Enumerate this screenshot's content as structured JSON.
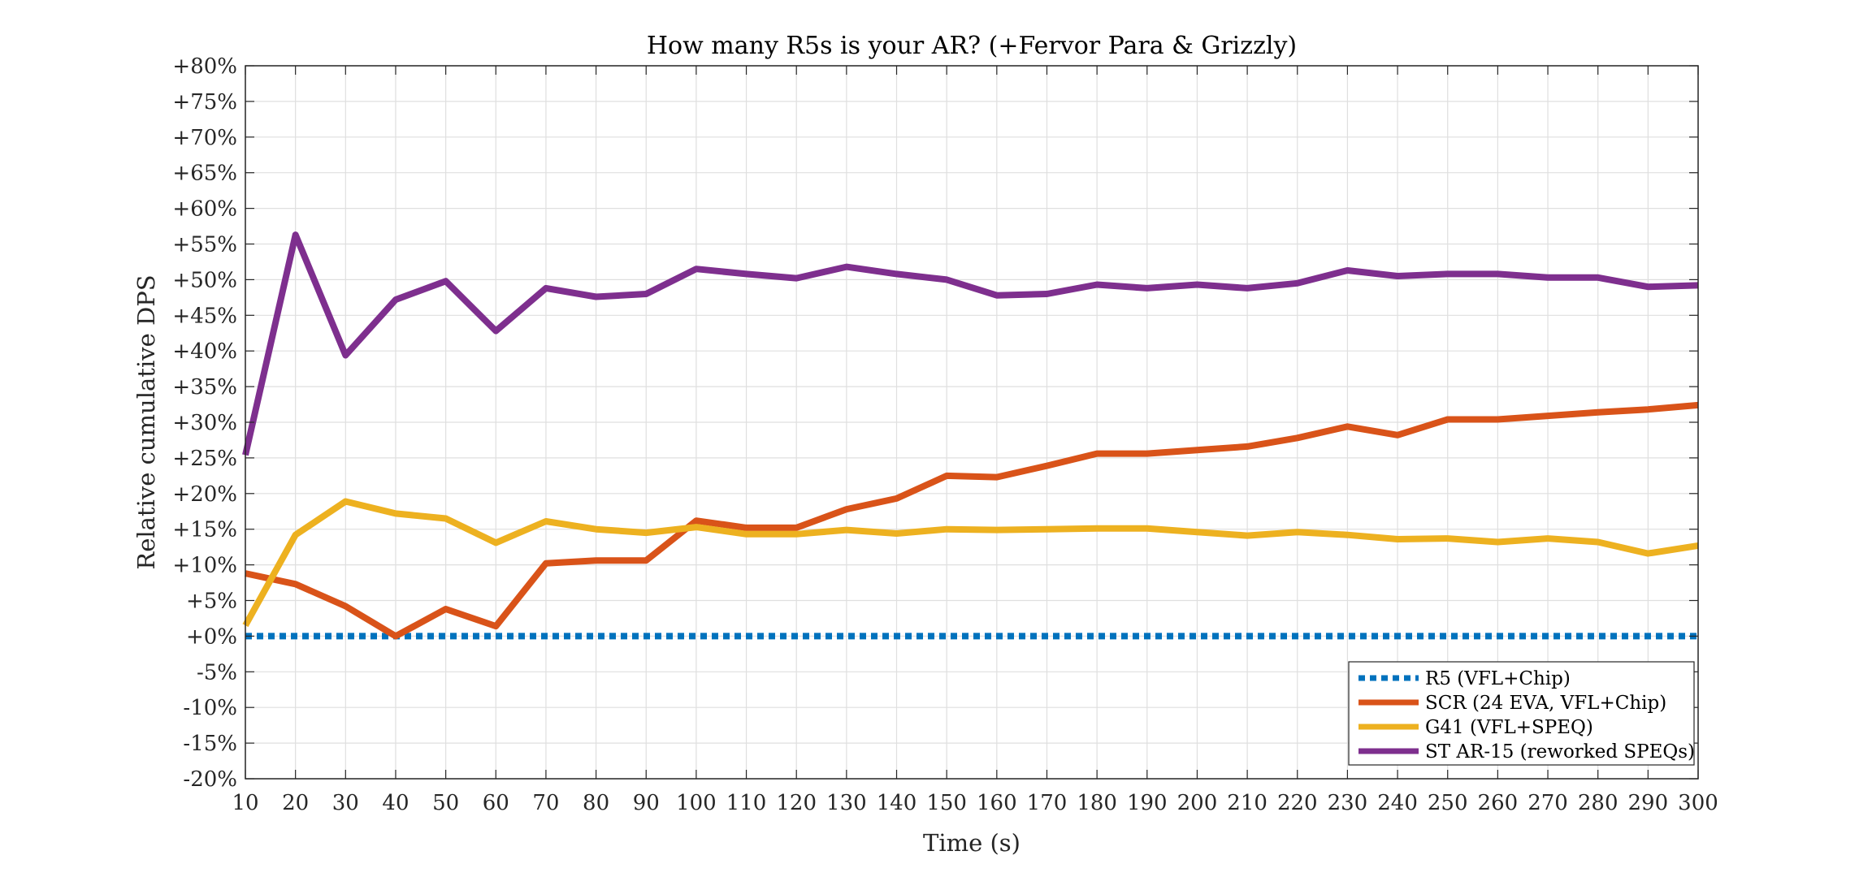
{
  "chart_data": {
    "type": "line",
    "title": "How many R5s is your AR? (+Fervor Para & Grizzly)",
    "xlabel": "Time (s)",
    "ylabel": "Relative cumulative DPS",
    "xlim": [
      10,
      300
    ],
    "ylim": [
      -20,
      80
    ],
    "grid": true,
    "legend_position": "bottom-right",
    "x": [
      10,
      20,
      30,
      40,
      50,
      60,
      70,
      80,
      90,
      100,
      110,
      120,
      130,
      140,
      150,
      160,
      170,
      180,
      190,
      200,
      210,
      220,
      230,
      240,
      250,
      260,
      270,
      280,
      290,
      300
    ],
    "x_tick_labels": [
      "10",
      "20",
      "30",
      "40",
      "50",
      "60",
      "70",
      "80",
      "90",
      "100",
      "110",
      "120",
      "130",
      "140",
      "150",
      "160",
      "170",
      "180",
      "190",
      "200",
      "210",
      "220",
      "230",
      "240",
      "250",
      "260",
      "270",
      "280",
      "290",
      "300"
    ],
    "y_ticks": [
      80,
      75,
      70,
      65,
      60,
      55,
      50,
      45,
      40,
      35,
      30,
      25,
      20,
      15,
      10,
      5,
      0,
      -5,
      -10,
      -15,
      -20
    ],
    "y_tick_labels": [
      "+80%",
      "+75%",
      "+70%",
      "+65%",
      "+60%",
      "+55%",
      "+50%",
      "+45%",
      "+40%",
      "+35%",
      "+30%",
      "+25%",
      "+20%",
      "+15%",
      "+10%",
      "+5%",
      "+0%",
      "-5%",
      "-10%",
      "-15%",
      "-20%"
    ],
    "series": [
      {
        "name": "R5 (VFL+Chip)",
        "color": "#0072BD",
        "style": "dotted",
        "values": [
          0,
          0,
          0,
          0,
          0,
          0,
          0,
          0,
          0,
          0,
          0,
          0,
          0,
          0,
          0,
          0,
          0,
          0,
          0,
          0,
          0,
          0,
          0,
          0,
          0,
          0,
          0,
          0,
          0,
          0
        ]
      },
      {
        "name": "SCR (24 EVA, VFL+Chip)",
        "color": "#D95319",
        "style": "solid",
        "values": [
          8.8,
          7.3,
          4.2,
          0,
          3.8,
          1.4,
          10.2,
          10.6,
          10.6,
          16.2,
          15.2,
          15.2,
          17.8,
          19.3,
          22.5,
          22.3,
          23.9,
          25.6,
          25.6,
          26.1,
          26.6,
          27.8,
          29.4,
          28.2,
          30.4,
          30.4,
          30.9,
          31.4,
          31.8,
          32.4
        ]
      },
      {
        "name": "G41 (VFL+SPEQ)",
        "color": "#EDB120",
        "style": "solid",
        "values": [
          1.5,
          14.2,
          18.9,
          17.2,
          16.5,
          13.1,
          16.1,
          15.0,
          14.5,
          15.3,
          14.3,
          14.3,
          14.9,
          14.4,
          15.0,
          14.9,
          15.0,
          15.1,
          15.1,
          14.6,
          14.1,
          14.6,
          14.2,
          13.6,
          13.7,
          13.2,
          13.7,
          13.2,
          11.6,
          12.7
        ]
      },
      {
        "name": "ST AR-15 (reworked SPEQs)",
        "color": "#7E2F8E",
        "style": "solid",
        "values": [
          25.4,
          56.3,
          39.4,
          47.2,
          49.8,
          42.8,
          48.8,
          47.6,
          48.0,
          51.5,
          50.8,
          50.2,
          51.8,
          50.8,
          50.0,
          47.8,
          48.0,
          49.3,
          48.8,
          49.3,
          48.8,
          49.5,
          51.3,
          50.5,
          50.8,
          50.8,
          50.3,
          50.3,
          49.0,
          49.2
        ]
      }
    ]
  }
}
